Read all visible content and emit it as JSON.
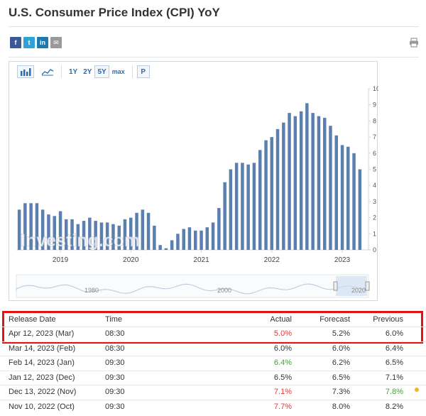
{
  "page": {
    "title": "U.S. Consumer Price Index (CPI) YoY"
  },
  "share": {
    "facebook": "f",
    "twitter": "t",
    "linkedin": "in",
    "email": "✉"
  },
  "toolbar": {
    "y1": "1Y",
    "y2": "2Y",
    "y5": "5Y",
    "max": "max",
    "p": "P"
  },
  "chart_data": {
    "type": "bar",
    "bar_color": "#5b7faf",
    "ylim": [
      0,
      10
    ],
    "y_ticks": [
      "0",
      "1",
      "2",
      "3",
      "4",
      "5",
      "6",
      "7",
      "8",
      "9",
      "10"
    ],
    "x_tick_labels": [
      "2019",
      "2020",
      "2021",
      "2022",
      "2023"
    ],
    "values": [
      2.5,
      2.9,
      2.9,
      2.9,
      2.5,
      2.2,
      2.1,
      2.4,
      1.9,
      1.9,
      1.6,
      1.8,
      2.0,
      1.8,
      1.7,
      1.7,
      1.6,
      1.5,
      1.9,
      2.0,
      2.3,
      2.5,
      2.3,
      1.5,
      0.3,
      0.1,
      0.6,
      1.0,
      1.3,
      1.4,
      1.2,
      1.2,
      1.4,
      1.7,
      2.6,
      4.2,
      5.0,
      5.4,
      5.4,
      5.3,
      5.4,
      6.2,
      6.8,
      7.0,
      7.5,
      7.9,
      8.5,
      8.3,
      8.6,
      9.1,
      8.5,
      8.3,
      8.2,
      7.7,
      7.1,
      6.5,
      6.4,
      6.0,
      5.0
    ],
    "watermark": "Investing.com",
    "navigator_labels": [
      "1980",
      "2000",
      "2020"
    ]
  },
  "table": {
    "headers": {
      "date": "Release Date",
      "time": "Time",
      "actual": "Actual",
      "forecast": "Forecast",
      "previous": "Previous"
    },
    "rows": [
      {
        "date": "Apr 12, 2023 (Mar)",
        "time": "08:30",
        "actual": "5.0%",
        "forecast": "5.2%",
        "previous": "6.0%",
        "actual_color": "red",
        "previous_color": ""
      },
      {
        "date": "Mar 14, 2023 (Feb)",
        "time": "08:30",
        "actual": "6.0%",
        "forecast": "6.0%",
        "previous": "6.4%",
        "actual_color": "",
        "previous_color": ""
      },
      {
        "date": "Feb 14, 2023 (Jan)",
        "time": "09:30",
        "actual": "6.4%",
        "forecast": "6.2%",
        "previous": "6.5%",
        "actual_color": "green",
        "previous_color": ""
      },
      {
        "date": "Jan 12, 2023 (Dec)",
        "time": "09:30",
        "actual": "6.5%",
        "forecast": "6.5%",
        "previous": "7.1%",
        "actual_color": "",
        "previous_color": ""
      },
      {
        "date": "Dec 13, 2022 (Nov)",
        "time": "09:30",
        "actual": "7.1%",
        "forecast": "7.3%",
        "previous": "7.8%",
        "actual_color": "red",
        "previous_color": "green"
      },
      {
        "date": "Nov 10, 2022 (Oct)",
        "time": "09:30",
        "actual": "7.7%",
        "forecast": "8.0%",
        "previous": "8.2%",
        "actual_color": "red",
        "previous_color": ""
      }
    ]
  }
}
